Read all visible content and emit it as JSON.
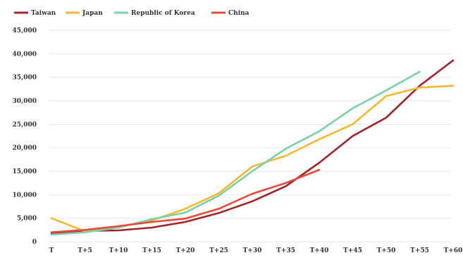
{
  "chart_data": {
    "type": "line",
    "title": "",
    "xlabel": "",
    "ylabel": "",
    "categories": [
      "T",
      "T+5",
      "T+10",
      "T+15",
      "T+20",
      "T+25",
      "T+30",
      "T+35",
      "T+40",
      "T+45",
      "T+50",
      "T+55",
      "T+60"
    ],
    "ylim": [
      0,
      45000
    ],
    "yticks": [
      0,
      5000,
      10000,
      15000,
      20000,
      25000,
      30000,
      35000,
      40000,
      45000
    ],
    "ytick_labels": [
      "0",
      "5,000",
      "10,000",
      "15,000",
      "20,000",
      "25,000",
      "30,000",
      "35,000",
      "40,000",
      "45,000"
    ],
    "grid": true,
    "legend_position": "top-left",
    "series": [
      {
        "name": "Taiwan",
        "color": "#a0242a",
        "values": [
          1800,
          2300,
          2400,
          3000,
          4200,
          6100,
          8600,
          11800,
          16800,
          22500,
          26400,
          33200,
          38600
        ]
      },
      {
        "name": "Japan",
        "color": "#f5b82e",
        "values": [
          5000,
          2200,
          3200,
          4500,
          7000,
          10300,
          16000,
          18300,
          21800,
          25000,
          31000,
          32800,
          33200
        ]
      },
      {
        "name": "Republic of Korea",
        "color": "#7ccfa7",
        "values": [
          1500,
          2000,
          3000,
          4800,
          6200,
          9800,
          15000,
          19800,
          23500,
          28400,
          32200,
          36200,
          null
        ]
      },
      {
        "name": "China",
        "color": "#e84a3a",
        "values": [
          2000,
          2500,
          3300,
          4200,
          4900,
          7000,
          10200,
          12500,
          15300,
          null,
          null,
          null,
          null
        ]
      }
    ]
  }
}
